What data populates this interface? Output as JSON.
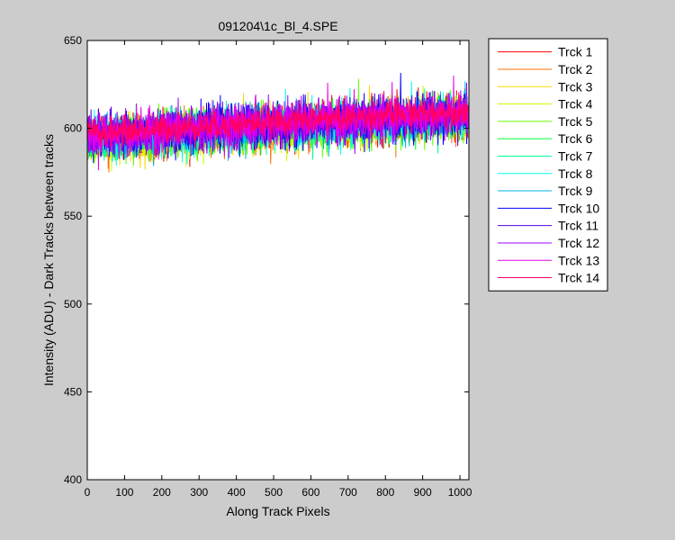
{
  "chart_data": {
    "type": "line",
    "title": "091204\\1c_Bl_4.SPE",
    "xlabel": "Along Track Pixels",
    "ylabel": "Intensity (ADU) - Dark Tracks between tracks",
    "xlim": [
      0,
      1024
    ],
    "ylim": [
      400,
      650
    ],
    "xticks": [
      0,
      100,
      200,
      300,
      400,
      500,
      600,
      700,
      800,
      900,
      1000
    ],
    "yticks": [
      400,
      450,
      500,
      550,
      600,
      650
    ],
    "x_range": [
      1,
      1024
    ],
    "grid": false,
    "legend_position": "outside-top-right",
    "series": [
      {
        "name": "Trck 1",
        "color": "#ff0000",
        "trend": [
          [
            0,
            593
          ],
          [
            300,
            598
          ],
          [
            600,
            602
          ],
          [
            1024,
            607
          ]
        ],
        "noise_sd": 6
      },
      {
        "name": "Trck 2",
        "color": "#ff7000",
        "trend": [
          [
            0,
            592
          ],
          [
            300,
            597
          ],
          [
            600,
            601
          ],
          [
            1024,
            606
          ]
        ],
        "noise_sd": 6
      },
      {
        "name": "Trck 3",
        "color": "#ffd700",
        "trend": [
          [
            0,
            592
          ],
          [
            300,
            597
          ],
          [
            600,
            601
          ],
          [
            1024,
            606
          ]
        ],
        "noise_sd": 6
      },
      {
        "name": "Trck 4",
        "color": "#c8ff00",
        "trend": [
          [
            0,
            593
          ],
          [
            300,
            597
          ],
          [
            600,
            601
          ],
          [
            1024,
            606
          ]
        ],
        "noise_sd": 6
      },
      {
        "name": "Trck 5",
        "color": "#66ff00",
        "trend": [
          [
            0,
            593
          ],
          [
            300,
            598
          ],
          [
            600,
            601
          ],
          [
            1024,
            606
          ]
        ],
        "noise_sd": 6
      },
      {
        "name": "Trck 6",
        "color": "#00ff33",
        "trend": [
          [
            0,
            593
          ],
          [
            300,
            598
          ],
          [
            600,
            602
          ],
          [
            1024,
            607
          ]
        ],
        "noise_sd": 6
      },
      {
        "name": "Trck 7",
        "color": "#00ff99",
        "trend": [
          [
            0,
            594
          ],
          [
            300,
            598
          ],
          [
            600,
            602
          ],
          [
            1024,
            607
          ]
        ],
        "noise_sd": 6
      },
      {
        "name": "Trck 8",
        "color": "#00ffee",
        "trend": [
          [
            0,
            594
          ],
          [
            300,
            598
          ],
          [
            600,
            602
          ],
          [
            1024,
            607
          ]
        ],
        "noise_sd": 6
      },
      {
        "name": "Trck 9",
        "color": "#00b4e6",
        "trend": [
          [
            0,
            594
          ],
          [
            300,
            599
          ],
          [
            600,
            602
          ],
          [
            1024,
            607
          ]
        ],
        "noise_sd": 6
      },
      {
        "name": "Trck 10",
        "color": "#0000ff",
        "trend": [
          [
            0,
            595
          ],
          [
            300,
            599
          ],
          [
            600,
            603
          ],
          [
            1024,
            608
          ]
        ],
        "noise_sd": 6
      },
      {
        "name": "Trck 11",
        "color": "#5a00e6",
        "trend": [
          [
            0,
            595
          ],
          [
            300,
            599
          ],
          [
            600,
            603
          ],
          [
            1024,
            608
          ]
        ],
        "noise_sd": 6
      },
      {
        "name": "Trck 12",
        "color": "#a000ff",
        "trend": [
          [
            0,
            596
          ],
          [
            300,
            600
          ],
          [
            600,
            604
          ],
          [
            1024,
            609
          ]
        ],
        "noise_sd": 6
      },
      {
        "name": "Trck 13",
        "color": "#e600e6",
        "trend": [
          [
            0,
            596
          ],
          [
            300,
            600
          ],
          [
            600,
            604
          ],
          [
            1024,
            609
          ]
        ],
        "noise_sd": 6
      },
      {
        "name": "Trck 14",
        "color": "#ff0066",
        "trend": [
          [
            0,
            597
          ],
          [
            300,
            601
          ],
          [
            600,
            605
          ],
          [
            1024,
            610
          ]
        ],
        "noise_sd": 4
      }
    ]
  }
}
